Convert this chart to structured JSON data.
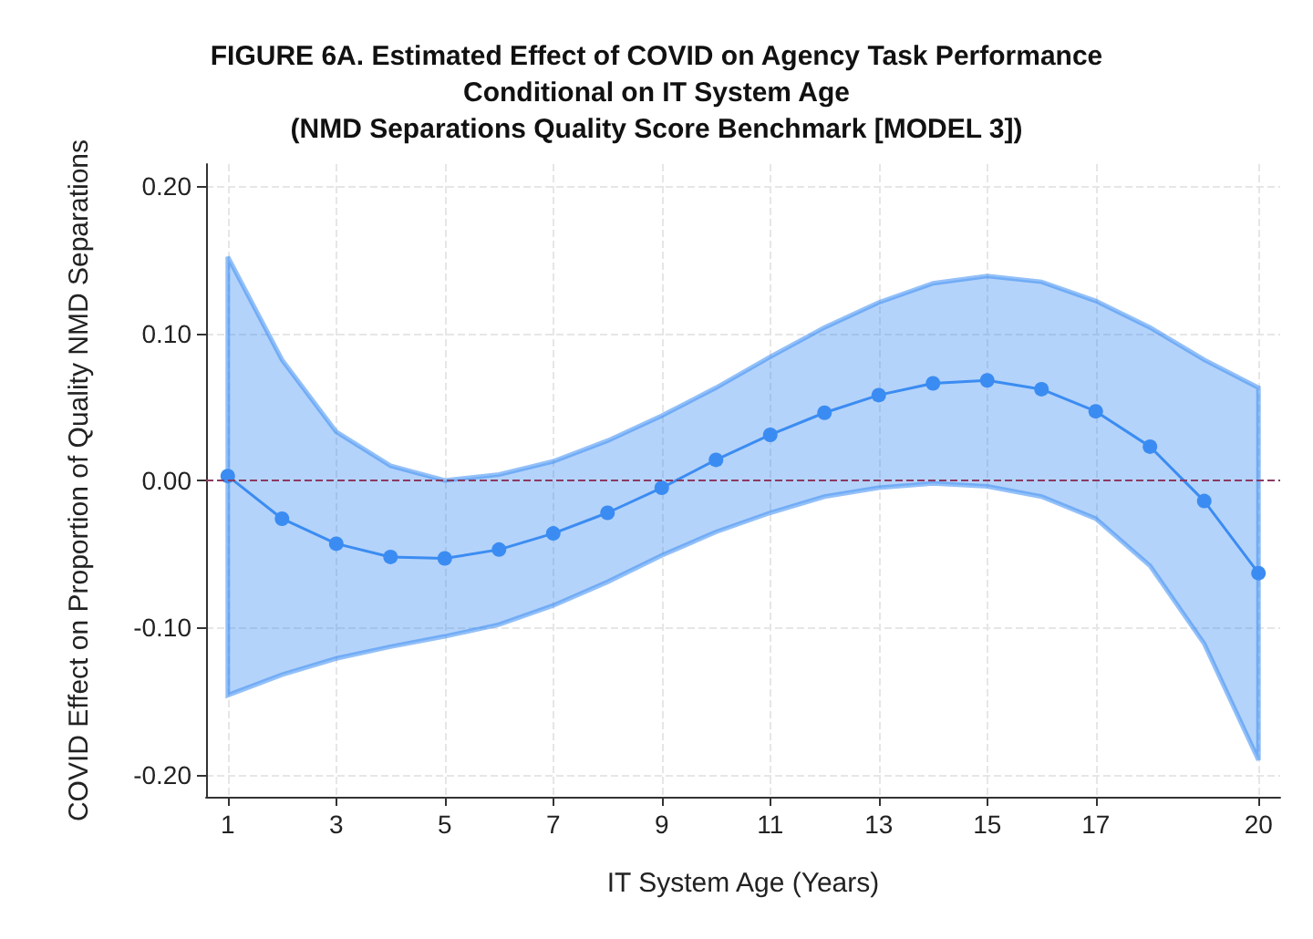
{
  "chart_data": {
    "type": "line",
    "title": "FIGURE 6A. Estimated Effect of COVID on Agency Task Performance\nConditional on IT System Age\n(NMD Separations Quality Score Benchmark [MODEL 3])",
    "xlabel": "IT System Age (Years)",
    "ylabel": "COVID Effect on Proportion of Quality NMD Separations",
    "x": [
      1,
      2,
      3,
      4,
      5,
      6,
      7,
      8,
      9,
      10,
      11,
      12,
      13,
      14,
      15,
      16,
      17,
      18,
      19,
      20
    ],
    "series": [
      {
        "color": "#3b8cf2",
        "values": [
          0.003,
          -0.026,
          -0.043,
          -0.052,
          -0.053,
          -0.047,
          -0.036,
          -0.022,
          -0.005,
          0.014,
          0.031,
          0.046,
          0.058,
          0.066,
          0.068,
          0.062,
          0.047,
          0.023,
          -0.014,
          -0.063
        ],
        "lower": [
          -0.146,
          -0.132,
          -0.121,
          -0.113,
          -0.106,
          -0.098,
          -0.085,
          -0.069,
          -0.051,
          -0.035,
          -0.022,
          -0.011,
          -0.005,
          -0.002,
          -0.004,
          -0.011,
          -0.026,
          -0.058,
          -0.111,
          -0.19
        ],
        "upper": [
          0.152,
          0.082,
          0.033,
          0.01,
          0.0,
          0.004,
          0.013,
          0.027,
          0.044,
          0.063,
          0.084,
          0.104,
          0.121,
          0.134,
          0.139,
          0.135,
          0.122,
          0.104,
          0.082,
          0.063
        ]
      }
    ],
    "xlim": [
      0.6,
      20.4
    ],
    "xticks": [
      1,
      3,
      5,
      7,
      9,
      11,
      13,
      15,
      17,
      20
    ],
    "ylim": [
      -0.215,
      0.215
    ],
    "yticks": [
      {
        "value": -0.2,
        "label": "-0.20"
      },
      {
        "value": -0.1,
        "label": "-0.10"
      },
      {
        "value": 0,
        "label": "0.00"
      },
      {
        "value": 0.1,
        "label": "0.10"
      },
      {
        "value": 0.2,
        "label": "0.20"
      }
    ],
    "ref_lines": [
      {
        "axis": "y",
        "value": 0,
        "color": "#8b3a62",
        "line_style": "dashed"
      }
    ],
    "grid": true,
    "marker": "circle",
    "line_style": "solid"
  }
}
